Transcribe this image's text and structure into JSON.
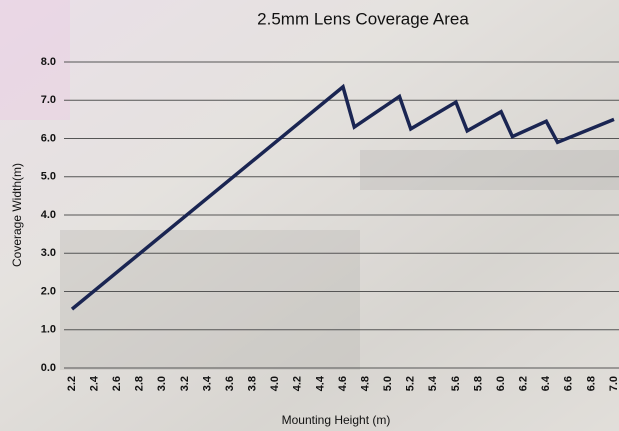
{
  "chart_data": {
    "type": "line",
    "title": "2.5mm Lens Coverage Area",
    "x_label": "Mounting Height (m)",
    "y_label": "Coverage Width(m)",
    "x": [
      2.2,
      4.6,
      4.7,
      5.1,
      5.2,
      5.6,
      5.7,
      6.0,
      6.1,
      6.4,
      6.5,
      7.0
    ],
    "values": [
      1.54,
      7.35,
      6.3,
      7.1,
      6.25,
      6.95,
      6.2,
      6.7,
      6.05,
      6.45,
      5.9,
      6.5
    ],
    "color": "#1a2552",
    "xlim": [
      2.2,
      7.0
    ],
    "xticks": [
      {
        "value": 2.2,
        "label": "2.2"
      },
      {
        "value": 2.4,
        "label": "2.4"
      },
      {
        "value": 2.6,
        "label": "2.6"
      },
      {
        "value": 2.8,
        "label": "2.8"
      },
      {
        "value": 3,
        "label": "3.0"
      },
      {
        "value": 3.2,
        "label": "3.2"
      },
      {
        "value": 3.4,
        "label": "3.4"
      },
      {
        "value": 3.6,
        "label": "3.6"
      },
      {
        "value": 3.8,
        "label": "3.8"
      },
      {
        "value": 4,
        "label": "4.0"
      },
      {
        "value": 4.2,
        "label": "4.2"
      },
      {
        "value": 4.4,
        "label": "4.4"
      },
      {
        "value": 4.6,
        "label": "4.6"
      },
      {
        "value": 4.8,
        "label": "4.8"
      },
      {
        "value": 5,
        "label": "5.0"
      },
      {
        "value": 5.2,
        "label": "5.2"
      },
      {
        "value": 5.4,
        "label": "5.4"
      },
      {
        "value": 5.6,
        "label": "5.6"
      },
      {
        "value": 5.8,
        "label": "5.8"
      },
      {
        "value": 6,
        "label": "6.0"
      },
      {
        "value": 6.2,
        "label": "6.2"
      },
      {
        "value": 6.4,
        "label": "6.4"
      },
      {
        "value": 6.6,
        "label": "6.6"
      },
      {
        "value": 6.8,
        "label": "6.8"
      },
      {
        "value": 7,
        "label": "7.0"
      }
    ],
    "ylim": [
      0,
      8
    ],
    "yticks": [
      {
        "value": 0,
        "label": "0.0"
      },
      {
        "value": 1,
        "label": "1.0"
      },
      {
        "value": 2,
        "label": "2.0"
      },
      {
        "value": 3,
        "label": "3.0"
      },
      {
        "value": 4,
        "label": "4.0"
      },
      {
        "value": 5,
        "label": "5.0"
      },
      {
        "value": 6,
        "label": "6.0"
      },
      {
        "value": 7,
        "label": "7.0"
      },
      {
        "value": 8,
        "label": "8.0"
      }
    ],
    "grid": true
  }
}
